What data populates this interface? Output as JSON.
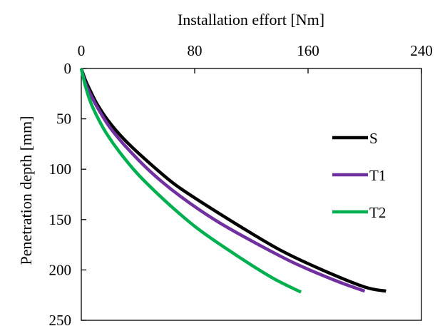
{
  "chart_data": {
    "type": "line",
    "title": "",
    "xlabel": "Installation effort [Nm]",
    "ylabel": "Penetration depth [mm]",
    "x_axis_position": "top",
    "y_axis_inverted": true,
    "xlim": [
      0,
      240
    ],
    "ylim": [
      0,
      250
    ],
    "x_ticks": [
      0,
      80,
      160,
      240
    ],
    "y_ticks": [
      0,
      50,
      100,
      150,
      200,
      250
    ],
    "x_tick_labels": [
      "0",
      "80",
      "160",
      "240"
    ],
    "y_tick_labels": [
      "0",
      "50",
      "100",
      "150",
      "200",
      "250"
    ],
    "grid": false,
    "legend_position": "right",
    "series": [
      {
        "name": "S",
        "color": "#000000",
        "points": [
          [
            0,
            0
          ],
          [
            3,
            12
          ],
          [
            7,
            24
          ],
          [
            11,
            35
          ],
          [
            19,
            52
          ],
          [
            30,
            70
          ],
          [
            45,
            90
          ],
          [
            65,
            114
          ],
          [
            85,
            133
          ],
          [
            110,
            155
          ],
          [
            140,
            180
          ],
          [
            170,
            200
          ],
          [
            200,
            217
          ],
          [
            215,
            221
          ]
        ]
      },
      {
        "name": "T1",
        "color": "#7030a0",
        "points": [
          [
            0,
            0
          ],
          [
            3,
            15
          ],
          [
            8,
            30
          ],
          [
            14,
            45
          ],
          [
            21,
            60
          ],
          [
            33,
            80
          ],
          [
            50,
            104
          ],
          [
            70,
            127
          ],
          [
            95,
            151
          ],
          [
            120,
            171
          ],
          [
            150,
            193
          ],
          [
            180,
            211
          ],
          [
            200,
            221
          ]
        ]
      },
      {
        "name": "T2",
        "color": "#00b050",
        "points": [
          [
            0,
            0
          ],
          [
            3,
            18
          ],
          [
            7,
            35
          ],
          [
            12,
            50
          ],
          [
            18,
            65
          ],
          [
            27,
            83
          ],
          [
            40,
            105
          ],
          [
            55,
            126
          ],
          [
            70,
            145
          ],
          [
            85,
            162
          ],
          [
            110,
            186
          ],
          [
            135,
            208
          ],
          [
            155,
            222
          ]
        ]
      }
    ]
  }
}
